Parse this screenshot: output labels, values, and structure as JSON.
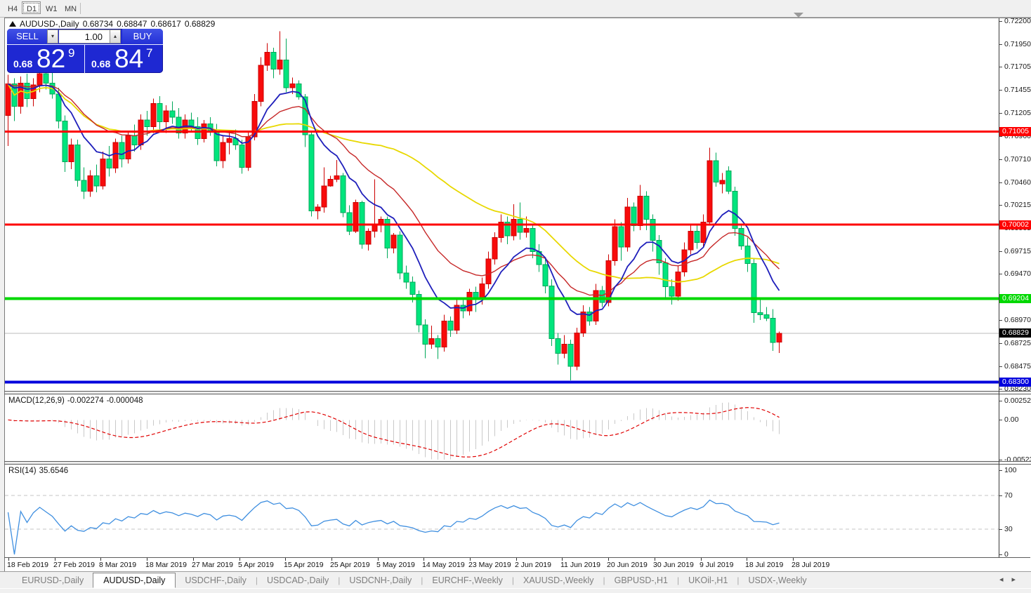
{
  "toolbar": {
    "timeframes": [
      {
        "label": "H4",
        "active": false
      },
      {
        "label": "D1",
        "active": true
      },
      {
        "label": "W1",
        "active": false
      },
      {
        "label": "MN",
        "active": false
      }
    ]
  },
  "chart": {
    "header": {
      "symbol": "AUDUSD-,Daily",
      "open": "0.68734",
      "high": "0.68847",
      "low": "0.68617",
      "close": "0.68829"
    },
    "trade_panel": {
      "sell_label": "SELL",
      "buy_label": "BUY",
      "volume": "1.00",
      "sell_price": {
        "prefix": "0.68",
        "big": "82",
        "pip": "9"
      },
      "buy_price": {
        "prefix": "0.68",
        "big": "84",
        "pip": "7"
      }
    },
    "price_scale": {
      "max": 0.722,
      "min": 0.6823,
      "ticks": [
        "0.72200",
        "0.71950",
        "0.71705",
        "0.71455",
        "0.71205",
        "0.70960",
        "0.70710",
        "0.70460",
        "0.70215",
        "0.69965",
        "0.69715",
        "0.69470",
        "0.69220",
        "0.68970",
        "0.68725",
        "0.68475",
        "0.68230"
      ]
    },
    "levels": [
      {
        "price": 0.71005,
        "label": "0.71005",
        "color": "#fe0000",
        "thickness": 3
      },
      {
        "price": 0.70002,
        "label": "0.70002",
        "color": "#fe0000",
        "thickness": 3
      },
      {
        "price": 0.69204,
        "label": "0.69204",
        "color": "#00d800",
        "thickness": 4
      },
      {
        "price": 0.683,
        "label": "0.68300",
        "color": "#0202dd",
        "thickness": 4
      }
    ],
    "current_price": {
      "value": 0.68829,
      "label": "0.68829"
    },
    "dates": [
      "18 Feb 2019",
      "27 Feb 2019",
      "8 Mar 2019",
      "18 Mar 2019",
      "27 Mar 2019",
      "5 Apr 2019",
      "15 Apr 2019",
      "25 Apr 2019",
      "5 May 2019",
      "14 May 2019",
      "23 May 2019",
      "2 Jun 2019",
      "11 Jun 2019",
      "20 Jun 2019",
      "30 Jun 2019",
      "9 Jul 2019",
      "18 Jul 2019",
      "28 Jul 2019"
    ],
    "colors": {
      "bull": "#f80b0b",
      "bull_border": "#cc0000",
      "bear": "#00e57d",
      "bear_border": "#00a85a",
      "ma_fast": "#1f1fbb",
      "ma_mid": "#c62828",
      "ma_slow": "#e8d800",
      "current_line": "#bbbbbb"
    },
    "candles": [
      [
        0.7118,
        0.7162,
        0.7085,
        0.7152
      ],
      [
        0.7152,
        0.7158,
        0.7112,
        0.7128
      ],
      [
        0.7128,
        0.716,
        0.712,
        0.7153
      ],
      [
        0.7153,
        0.7163,
        0.7127,
        0.7136
      ],
      [
        0.7136,
        0.7158,
        0.7128,
        0.7151
      ],
      [
        0.7151,
        0.7169,
        0.7143,
        0.7163
      ],
      [
        0.7163,
        0.7171,
        0.7146,
        0.7153
      ],
      [
        0.7153,
        0.7166,
        0.7136,
        0.7141
      ],
      [
        0.7141,
        0.7148,
        0.7104,
        0.7112
      ],
      [
        0.7112,
        0.7118,
        0.7057,
        0.7068
      ],
      [
        0.7068,
        0.7093,
        0.706,
        0.7086
      ],
      [
        0.7086,
        0.7092,
        0.7041,
        0.7048
      ],
      [
        0.7048,
        0.7062,
        0.7028,
        0.7036
      ],
      [
        0.7036,
        0.7059,
        0.703,
        0.7053
      ],
      [
        0.7053,
        0.7065,
        0.7035,
        0.7042
      ],
      [
        0.7042,
        0.7079,
        0.7038,
        0.7071
      ],
      [
        0.7071,
        0.7085,
        0.7052,
        0.7061
      ],
      [
        0.7061,
        0.7093,
        0.7056,
        0.7089
      ],
      [
        0.7089,
        0.7096,
        0.7062,
        0.7071
      ],
      [
        0.7071,
        0.7101,
        0.7066,
        0.7096
      ],
      [
        0.7096,
        0.7108,
        0.7079,
        0.7086
      ],
      [
        0.7086,
        0.7119,
        0.7081,
        0.7113
      ],
      [
        0.7113,
        0.7123,
        0.7096,
        0.7106
      ],
      [
        0.7106,
        0.7136,
        0.7099,
        0.7131
      ],
      [
        0.7131,
        0.7139,
        0.7103,
        0.7111
      ],
      [
        0.7111,
        0.7129,
        0.7099,
        0.7123
      ],
      [
        0.7123,
        0.7133,
        0.7109,
        0.7116
      ],
      [
        0.7116,
        0.7126,
        0.7093,
        0.7099
      ],
      [
        0.7099,
        0.7119,
        0.7093,
        0.7113
      ],
      [
        0.7113,
        0.7121,
        0.71,
        0.7106
      ],
      [
        0.7106,
        0.7116,
        0.7086,
        0.7093
      ],
      [
        0.7093,
        0.7113,
        0.7089,
        0.7109
      ],
      [
        0.7109,
        0.7116,
        0.7096,
        0.7101
      ],
      [
        0.7101,
        0.7109,
        0.7063,
        0.7069
      ],
      [
        0.7069,
        0.7096,
        0.7061,
        0.7089
      ],
      [
        0.7089,
        0.7099,
        0.7076,
        0.7093
      ],
      [
        0.7093,
        0.7103,
        0.7081,
        0.7086
      ],
      [
        0.7086,
        0.7092,
        0.7055,
        0.7062
      ],
      [
        0.7062,
        0.71,
        0.7058,
        0.7095
      ],
      [
        0.7095,
        0.7141,
        0.7091,
        0.7133
      ],
      [
        0.7133,
        0.7181,
        0.7128,
        0.7172
      ],
      [
        0.7172,
        0.7196,
        0.7166,
        0.7186
      ],
      [
        0.7186,
        0.7191,
        0.7158,
        0.7168
      ],
      [
        0.7168,
        0.7209,
        0.7162,
        0.7178
      ],
      [
        0.7178,
        0.7201,
        0.7143,
        0.7148
      ],
      [
        0.7148,
        0.7159,
        0.7141,
        0.7152
      ],
      [
        0.7152,
        0.7156,
        0.7135,
        0.7138
      ],
      [
        0.7138,
        0.7141,
        0.7084,
        0.7097
      ],
      [
        0.7097,
        0.7101,
        0.7009,
        0.7015
      ],
      [
        0.7015,
        0.7022,
        0.7006,
        0.7019
      ],
      [
        0.7019,
        0.7062,
        0.7013,
        0.7042
      ],
      [
        0.7042,
        0.7053,
        0.7041,
        0.7049
      ],
      [
        0.7049,
        0.707,
        0.7046,
        0.7053
      ],
      [
        0.7053,
        0.7056,
        0.7008,
        0.7013
      ],
      [
        0.7013,
        0.7021,
        0.6989,
        0.6993
      ],
      [
        0.6993,
        0.7027,
        0.6991,
        0.7024
      ],
      [
        0.7024,
        0.7026,
        0.6974,
        0.6979
      ],
      [
        0.6979,
        0.6996,
        0.6972,
        0.6993
      ],
      [
        0.6993,
        0.7049,
        0.6986,
        0.7001
      ],
      [
        0.7001,
        0.7009,
        0.6992,
        0.7006
      ],
      [
        0.7006,
        0.7009,
        0.6964,
        0.6975
      ],
      [
        0.6975,
        0.6991,
        0.6969,
        0.6989
      ],
      [
        0.6989,
        0.6993,
        0.6941,
        0.6948
      ],
      [
        0.6948,
        0.6956,
        0.6931,
        0.6938
      ],
      [
        0.6938,
        0.6944,
        0.6916,
        0.6925
      ],
      [
        0.6925,
        0.6929,
        0.6884,
        0.6892
      ],
      [
        0.6892,
        0.6898,
        0.6856,
        0.6871
      ],
      [
        0.6871,
        0.6891,
        0.6866,
        0.6877
      ],
      [
        0.6877,
        0.6881,
        0.6855,
        0.6868
      ],
      [
        0.6868,
        0.6903,
        0.6863,
        0.6896
      ],
      [
        0.6896,
        0.6901,
        0.6879,
        0.6886
      ],
      [
        0.6886,
        0.6921,
        0.6882,
        0.6913
      ],
      [
        0.6913,
        0.6919,
        0.6899,
        0.6907
      ],
      [
        0.6907,
        0.6931,
        0.6902,
        0.6927
      ],
      [
        0.6927,
        0.6933,
        0.6906,
        0.6919
      ],
      [
        0.6919,
        0.6943,
        0.6914,
        0.6936
      ],
      [
        0.6936,
        0.6971,
        0.6931,
        0.6963
      ],
      [
        0.6963,
        0.6992,
        0.6957,
        0.6986
      ],
      [
        0.6986,
        0.7011,
        0.6981,
        0.7003
      ],
      [
        0.7003,
        0.7009,
        0.6979,
        0.6988
      ],
      [
        0.6988,
        0.7022,
        0.6983,
        0.7006
      ],
      [
        0.7006,
        0.7024,
        0.6984,
        0.6992
      ],
      [
        0.6992,
        0.7009,
        0.6986,
        0.6996
      ],
      [
        0.6996,
        0.7001,
        0.6964,
        0.6971
      ],
      [
        0.6971,
        0.6979,
        0.6949,
        0.6957
      ],
      [
        0.6957,
        0.6963,
        0.6926,
        0.6934
      ],
      [
        0.6934,
        0.6941,
        0.6869,
        0.6877
      ],
      [
        0.6877,
        0.6883,
        0.6849,
        0.6861
      ],
      [
        0.6861,
        0.6881,
        0.6856,
        0.6871
      ],
      [
        0.6871,
        0.6876,
        0.6832,
        0.6847
      ],
      [
        0.6847,
        0.6889,
        0.6843,
        0.6883
      ],
      [
        0.6883,
        0.6913,
        0.6879,
        0.6906
      ],
      [
        0.6906,
        0.6911,
        0.6891,
        0.6896
      ],
      [
        0.6896,
        0.6936,
        0.6892,
        0.6929
      ],
      [
        0.6929,
        0.6934,
        0.6911,
        0.6916
      ],
      [
        0.6916,
        0.6968,
        0.6912,
        0.6961
      ],
      [
        0.6961,
        0.7006,
        0.6956,
        0.6998
      ],
      [
        0.6998,
        0.7003,
        0.6961,
        0.6976
      ],
      [
        0.6976,
        0.7029,
        0.6971,
        0.7019
      ],
      [
        0.7019,
        0.7024,
        0.6993,
        0.6999
      ],
      [
        0.6999,
        0.7043,
        0.6994,
        0.7031
      ],
      [
        0.7031,
        0.7036,
        0.6994,
        0.7006
      ],
      [
        0.7006,
        0.7011,
        0.6971,
        0.6983
      ],
      [
        0.6983,
        0.6989,
        0.6946,
        0.6959
      ],
      [
        0.6959,
        0.6964,
        0.6919,
        0.6933
      ],
      [
        0.6933,
        0.6941,
        0.6914,
        0.6923
      ],
      [
        0.6923,
        0.6956,
        0.6918,
        0.6949
      ],
      [
        0.6949,
        0.6981,
        0.6944,
        0.6973
      ],
      [
        0.6973,
        0.7001,
        0.6968,
        0.6993
      ],
      [
        0.6993,
        0.6999,
        0.6974,
        0.6981
      ],
      [
        0.6981,
        0.7011,
        0.6976,
        0.7003
      ],
      [
        0.7003,
        0.7083,
        0.6999,
        0.7069
      ],
      [
        0.7069,
        0.7078,
        0.7041,
        0.7046
      ],
      [
        0.7044,
        0.7056,
        0.7034,
        0.7048
      ],
      [
        0.7058,
        0.7063,
        0.7033,
        0.7036
      ],
      [
        0.7036,
        0.7041,
        0.6988,
        0.6996
      ],
      [
        0.6996,
        0.7001,
        0.6973,
        0.6977
      ],
      [
        0.6977,
        0.6986,
        0.6949,
        0.6958
      ],
      [
        0.6958,
        0.6963,
        0.6894,
        0.6905
      ],
      [
        0.6905,
        0.6919,
        0.6897,
        0.6903
      ],
      [
        0.6903,
        0.6911,
        0.6896,
        0.6899
      ],
      [
        0.6899,
        0.6909,
        0.6864,
        0.6873
      ],
      [
        0.68734,
        0.68847,
        0.68617,
        0.68829
      ]
    ]
  },
  "macd": {
    "name": "MACD(12,26,9)",
    "main_value": "-0.002274",
    "signal_value": "-0.000048",
    "scale": {
      "max": 0.002522,
      "min": -0.005234
    },
    "ticks": [
      {
        "label": "0.002522",
        "value": 0.002522
      },
      {
        "label": "0.00",
        "value": 0
      },
      {
        "label": "-0.005234",
        "value": -0.005234
      }
    ],
    "colors": {
      "hist": "#c9c9c9",
      "signal": "#e00000"
    }
  },
  "rsi": {
    "name": "RSI(14)",
    "value": "35.6546",
    "scale": {
      "max": 100,
      "min": 0
    },
    "ticks": [
      {
        "label": "100",
        "value": 100
      },
      {
        "label": "70",
        "value": 70
      },
      {
        "label": "30",
        "value": 30
      },
      {
        "label": "0",
        "value": 0
      }
    ],
    "levels": [
      70,
      30
    ],
    "color": "#3f8fe0"
  },
  "tabs": {
    "items": [
      {
        "label": "EURUSD-,Daily",
        "active": false
      },
      {
        "label": "AUDUSD-,Daily",
        "active": true
      },
      {
        "label": "USDCHF-,Daily",
        "active": false
      },
      {
        "label": "USDCAD-,Daily",
        "active": false
      },
      {
        "label": "USDCNH-,Daily",
        "active": false
      },
      {
        "label": "EURCHF-,Weekly",
        "active": false
      },
      {
        "label": "XAUUSD-,Weekly",
        "active": false
      },
      {
        "label": "GBPUSD-,H1",
        "active": false
      },
      {
        "label": "UKOil-,H1",
        "active": false
      },
      {
        "label": "USDX-,Weekly",
        "active": false
      }
    ]
  }
}
